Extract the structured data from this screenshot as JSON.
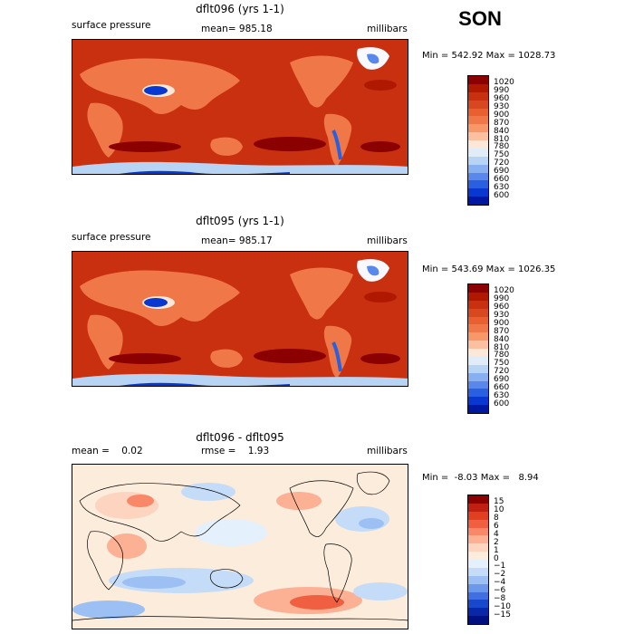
{
  "season": "SON",
  "panels": [
    {
      "title": "dflt096 (yrs 1-1)",
      "left_label": "surface pressure",
      "center_label": "mean= 985.18",
      "right_label": "millibars",
      "minmax": "Min = 542.92 Max = 1028.73",
      "levels": [
        "1020",
        "990",
        "960",
        "930",
        "900",
        "870",
        "840",
        "810",
        "780",
        "750",
        "720",
        "690",
        "660",
        "630",
        "600"
      ],
      "colors": [
        "#8b0000",
        "#b01800",
        "#c83010",
        "#d84820",
        "#e86030",
        "#f07848",
        "#f89868",
        "#fcc0a0",
        "#fce8d8",
        "#e0ecf8",
        "#b8d4f4",
        "#88b0f0",
        "#5888ec",
        "#2860e0",
        "#0838d0",
        "#0018a0"
      ]
    },
    {
      "title": "dflt095 (yrs 1-1)",
      "left_label": "surface pressure",
      "center_label": "mean= 985.17",
      "right_label": "millibars",
      "minmax": "Min = 543.69 Max = 1026.35",
      "levels": [
        "1020",
        "990",
        "960",
        "930",
        "900",
        "870",
        "840",
        "810",
        "780",
        "750",
        "720",
        "690",
        "660",
        "630",
        "600"
      ],
      "colors": [
        "#8b0000",
        "#b01800",
        "#c83010",
        "#d84820",
        "#e86030",
        "#f07848",
        "#f89868",
        "#fcc0a0",
        "#fce8d8",
        "#e0ecf8",
        "#b8d4f4",
        "#88b0f0",
        "#5888ec",
        "#2860e0",
        "#0838d0",
        "#0018a0"
      ]
    },
    {
      "title": "dflt096 - dflt095",
      "left_label": "mean =    0.02",
      "center_label": "rmse =    1.93",
      "right_label": "millibars",
      "minmax": "Min =  -8.03 Max =   8.94",
      "levels": [
        "15",
        "10",
        "8",
        "6",
        "4",
        "2",
        "1",
        "0",
        "−1",
        "−2",
        "−4",
        "−6",
        "−8",
        "−10",
        "−15"
      ],
      "colors": [
        "#8b0000",
        "#c02010",
        "#e04020",
        "#f06040",
        "#f88868",
        "#fcb094",
        "#fcd4c0",
        "#fcecdc",
        "#e4f0fc",
        "#c4dcf8",
        "#9cc0f4",
        "#6c98ec",
        "#4070e0",
        "#1848cc",
        "#0828a8",
        "#001080"
      ]
    }
  ]
}
